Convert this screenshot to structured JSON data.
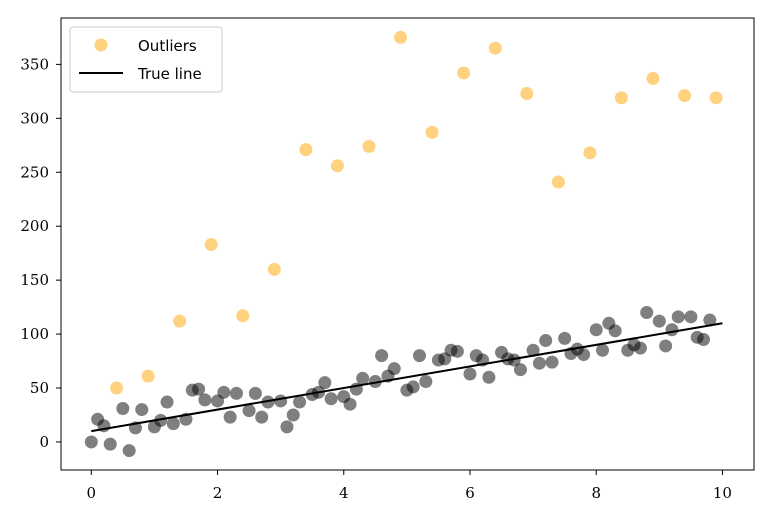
{
  "chart_data": {
    "type": "scatter",
    "title": "",
    "xlabel": "",
    "ylabel": "",
    "xlim": [
      -0.48,
      10.5
    ],
    "ylim": [
      -26,
      393
    ],
    "xticks": [
      0,
      2,
      4,
      6,
      8,
      10
    ],
    "yticks": [
      0,
      50,
      100,
      150,
      200,
      250,
      300,
      350
    ],
    "grid": false,
    "legend_position": "top-left",
    "legend": [
      {
        "label": "Outliers",
        "kind": "marker",
        "color": "#FFA500"
      },
      {
        "label": "True line",
        "kind": "line",
        "color": "#000000"
      }
    ],
    "series": [
      {
        "color": "#000000",
        "alpha": 0.5,
        "kind": "scatter",
        "points": [
          [
            0.0,
            0
          ],
          [
            0.1,
            21
          ],
          [
            0.2,
            15
          ],
          [
            0.3,
            -2
          ],
          [
            0.5,
            31
          ],
          [
            0.6,
            -8
          ],
          [
            0.7,
            13
          ],
          [
            0.8,
            30
          ],
          [
            1.0,
            14
          ],
          [
            1.1,
            20
          ],
          [
            1.2,
            37
          ],
          [
            1.3,
            17
          ],
          [
            1.5,
            21
          ],
          [
            1.6,
            48
          ],
          [
            1.7,
            49
          ],
          [
            1.8,
            39
          ],
          [
            2.0,
            38
          ],
          [
            2.1,
            46
          ],
          [
            2.2,
            23
          ],
          [
            2.3,
            45
          ],
          [
            2.5,
            29
          ],
          [
            2.6,
            45
          ],
          [
            2.7,
            23
          ],
          [
            2.8,
            37
          ],
          [
            3.0,
            38
          ],
          [
            3.1,
            14
          ],
          [
            3.2,
            25
          ],
          [
            3.3,
            37
          ],
          [
            3.5,
            44
          ],
          [
            3.6,
            46
          ],
          [
            3.7,
            55
          ],
          [
            3.8,
            40
          ],
          [
            4.0,
            42
          ],
          [
            4.1,
            35
          ],
          [
            4.2,
            49
          ],
          [
            4.3,
            59
          ],
          [
            4.5,
            56
          ],
          [
            4.6,
            80
          ],
          [
            4.7,
            61
          ],
          [
            4.8,
            68
          ],
          [
            5.0,
            48
          ],
          [
            5.1,
            51
          ],
          [
            5.2,
            80
          ],
          [
            5.3,
            56
          ],
          [
            5.5,
            76
          ],
          [
            5.6,
            77
          ],
          [
            5.7,
            85
          ],
          [
            5.8,
            84
          ],
          [
            6.0,
            63
          ],
          [
            6.1,
            80
          ],
          [
            6.2,
            76
          ],
          [
            6.3,
            60
          ],
          [
            6.5,
            83
          ],
          [
            6.6,
            77
          ],
          [
            6.7,
            76
          ],
          [
            6.8,
            67
          ],
          [
            7.0,
            85
          ],
          [
            7.1,
            73
          ],
          [
            7.2,
            94
          ],
          [
            7.3,
            74
          ],
          [
            7.5,
            96
          ],
          [
            7.6,
            82
          ],
          [
            7.7,
            86
          ],
          [
            7.8,
            81
          ],
          [
            8.0,
            104
          ],
          [
            8.1,
            85
          ],
          [
            8.2,
            110
          ],
          [
            8.3,
            103
          ],
          [
            8.5,
            85
          ],
          [
            8.6,
            90
          ],
          [
            8.7,
            87
          ],
          [
            8.8,
            120
          ],
          [
            9.0,
            112
          ],
          [
            9.1,
            89
          ],
          [
            9.2,
            104
          ],
          [
            9.3,
            116
          ],
          [
            9.5,
            116
          ],
          [
            9.6,
            97
          ],
          [
            9.7,
            95
          ],
          [
            9.8,
            113
          ]
        ]
      },
      {
        "name": "Outliers",
        "color": "#FFA500",
        "alpha": 0.5,
        "kind": "scatter",
        "points": [
          [
            0.4,
            50
          ],
          [
            0.9,
            61
          ],
          [
            1.4,
            112
          ],
          [
            1.9,
            183
          ],
          [
            2.4,
            117
          ],
          [
            2.9,
            160
          ],
          [
            3.4,
            271
          ],
          [
            3.9,
            256
          ],
          [
            4.4,
            274
          ],
          [
            4.9,
            375
          ],
          [
            5.4,
            287
          ],
          [
            5.9,
            342
          ],
          [
            6.4,
            365
          ],
          [
            6.9,
            323
          ],
          [
            7.4,
            241
          ],
          [
            7.9,
            268
          ],
          [
            8.4,
            319
          ],
          [
            8.9,
            337
          ],
          [
            9.4,
            321
          ],
          [
            9.9,
            319
          ]
        ]
      },
      {
        "name": "True line",
        "color": "#000000",
        "kind": "line",
        "points": [
          [
            0,
            10
          ],
          [
            10,
            110
          ]
        ]
      }
    ]
  }
}
